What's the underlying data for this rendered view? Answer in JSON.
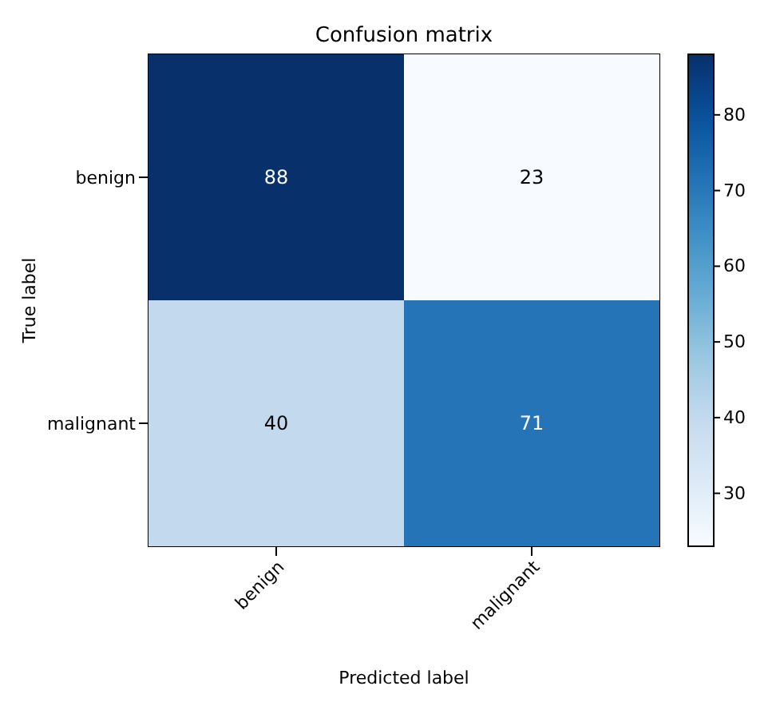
{
  "chart_data": {
    "type": "heatmap",
    "title": "Confusion matrix",
    "xlabel": "Predicted label",
    "ylabel": "True label",
    "categories": [
      "benign",
      "malignant"
    ],
    "y_categories": [
      "benign",
      "malignant"
    ],
    "cells": [
      [
        88,
        23
      ],
      [
        40,
        71
      ]
    ],
    "clim": [
      23,
      88
    ],
    "cticks": [
      30,
      40,
      50,
      60,
      70,
      80
    ],
    "data_labels": true
  }
}
